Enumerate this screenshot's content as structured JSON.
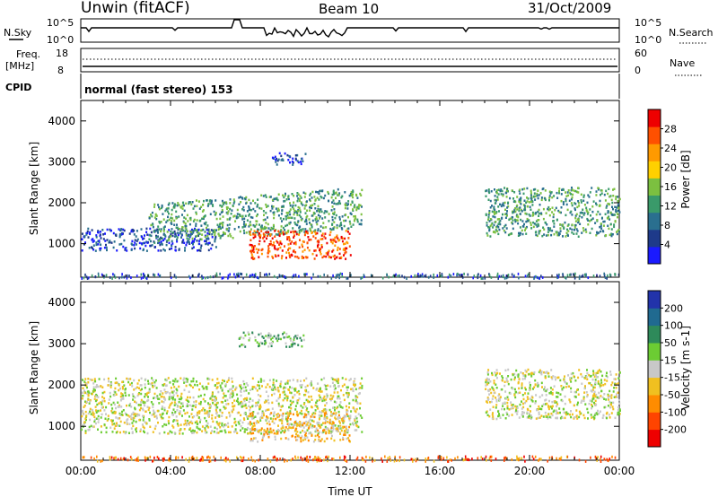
{
  "header": {
    "site": "Unwin (fitACF)",
    "beam": "Beam 10",
    "date": "31/Oct/2009",
    "cpid_label": "CPID",
    "mode_text": "normal (fast stereo) 153"
  },
  "strips": {
    "nsky_label": "N.Sky",
    "nsky_ticks": [
      "10^5",
      "10^0"
    ],
    "nsearch_label": "N.Search",
    "nsearch_ticks": [
      "10^5",
      "10^0"
    ],
    "freq_label": "Freq.",
    "freq_unit": "[MHz]",
    "freq_ticks": [
      18,
      8
    ],
    "nave_label": "Nave",
    "nave_ticks": [
      60,
      0
    ]
  },
  "colors": {
    "power_scale": [
      "#1a1aff",
      "#1e3a8a",
      "#2a6f8f",
      "#3a9a6a",
      "#7cc040",
      "#ffd000",
      "#ff9a00",
      "#ff5000",
      "#ee0000"
    ],
    "velocity_scale": [
      "#2233aa",
      "#206a90",
      "#2e8a5a",
      "#6ccc33",
      "#c8c8c8",
      "#f0c020",
      "#ff8c00",
      "#ff4400",
      "#ee0000"
    ]
  },
  "chart_data": [
    {
      "type": "heatmap",
      "quantity": "Power",
      "ylabel": "Slant Range [km]",
      "ylim": [
        180,
        4500
      ],
      "yticks": [
        1000,
        2000,
        3000,
        4000
      ],
      "xlim": [
        0,
        24
      ],
      "colorbar_label": "Power [dB]",
      "colorbar_ticks": [
        4,
        8,
        12,
        16,
        20,
        24,
        28
      ],
      "regions": [
        {
          "t0": 0.0,
          "t1": 6.0,
          "r0": 850,
          "r1": 1400,
          "level": 1
        },
        {
          "t0": 3.0,
          "t1": 12.5,
          "r0": 1150,
          "r1": 2150,
          "level": 3
        },
        {
          "t0": 7.5,
          "t1": 12.0,
          "r0": 650,
          "r1": 1350,
          "level": 7
        },
        {
          "t0": 8.5,
          "t1": 10.0,
          "r0": 2950,
          "r1": 3250,
          "level": 1
        },
        {
          "t0": 18.0,
          "t1": 24.0,
          "r0": 1200,
          "r1": 2400,
          "level": 3
        }
      ]
    },
    {
      "type": "heatmap",
      "quantity": "Velocity",
      "ylabel": "Slant Range [km]",
      "ylim": [
        180,
        4500
      ],
      "yticks": [
        1000,
        2000,
        3000,
        4000
      ],
      "xlim": [
        0,
        24
      ],
      "xlabel": "Time UT",
      "xticks": [
        "00:00",
        "04:00",
        "08:00",
        "12:00",
        "16:00",
        "20:00",
        "00:00"
      ],
      "colorbar_label": "Velocity [m s-1]",
      "colorbar_ticks": [
        -200,
        -100,
        -50,
        -15,
        15,
        50,
        100,
        200
      ],
      "regions": [
        {
          "t0": 0.0,
          "t1": 12.5,
          "r0": 850,
          "r1": 2200,
          "level": 4
        },
        {
          "t0": 7.5,
          "t1": 12.0,
          "r0": 650,
          "r1": 1350,
          "level": 3
        },
        {
          "t0": 7.0,
          "t1": 10.0,
          "r0": 2950,
          "r1": 3300,
          "level": 5
        },
        {
          "t0": 18.0,
          "t1": 24.0,
          "r0": 1200,
          "r1": 2400,
          "level": 4
        }
      ]
    }
  ]
}
